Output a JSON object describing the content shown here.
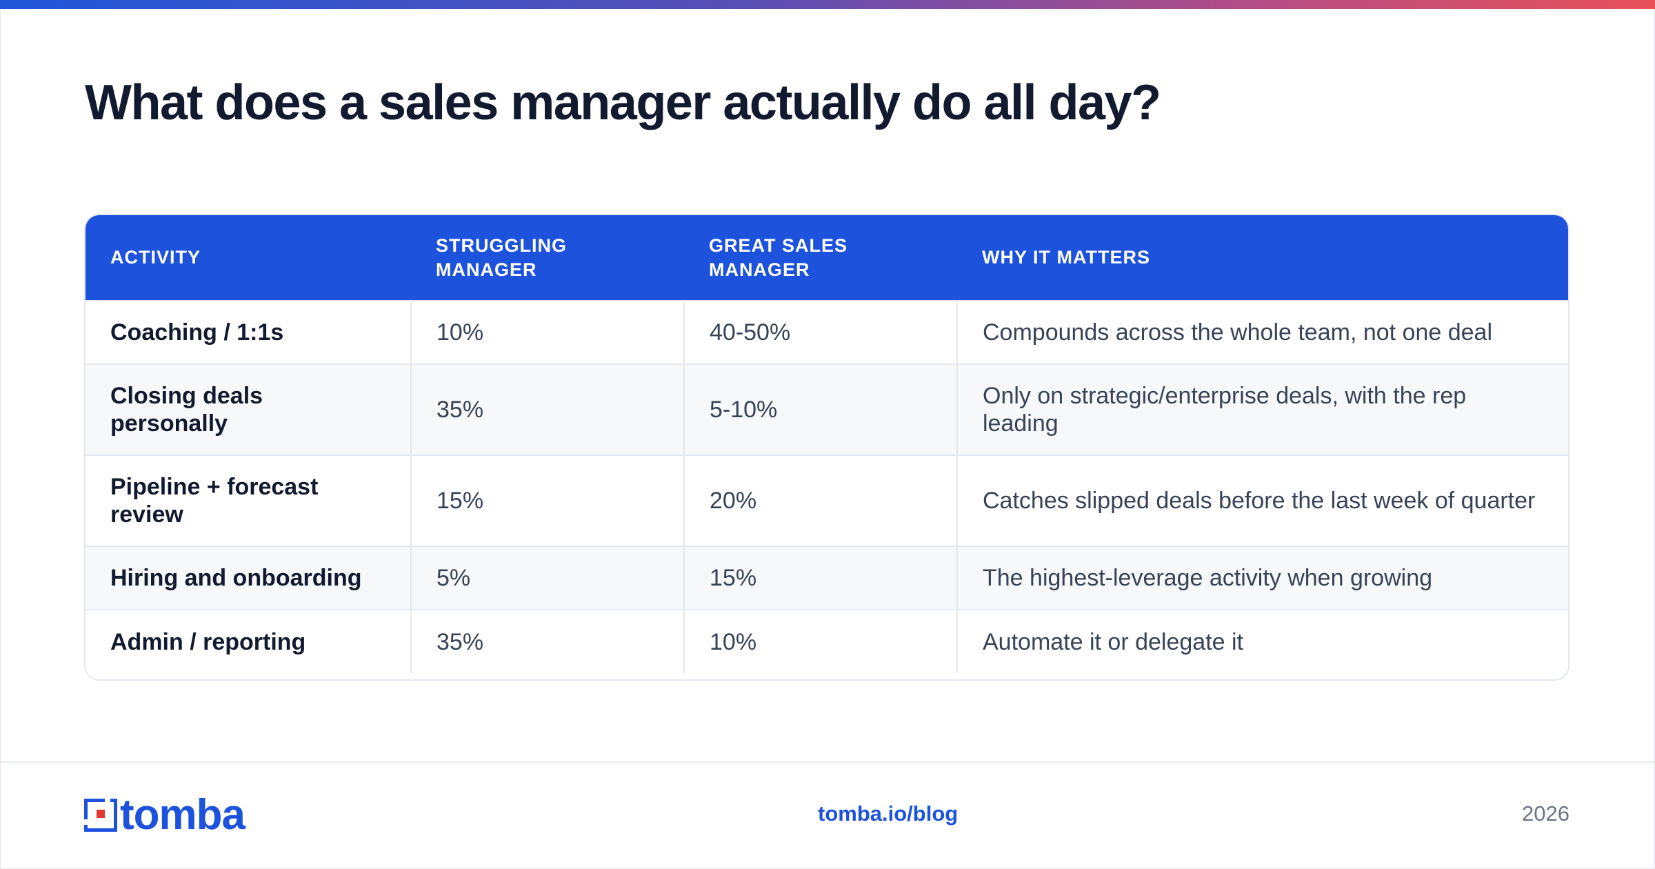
{
  "title": "What does a sales manager actually do all day?",
  "colors": {
    "accent": "#1c52dc",
    "title": "#111a2e",
    "gradient_start": "#1f56d8",
    "gradient_end": "#e8515a"
  },
  "table": {
    "headers": {
      "activity": "ACTIVITY",
      "struggling_line1": "STRUGGLING",
      "struggling_line2": "MANAGER",
      "great_line1": "GREAT SALES",
      "great_line2": "MANAGER",
      "why": "WHY IT MATTERS"
    },
    "rows": [
      {
        "activity": "Coaching / 1:1s",
        "struggling": "10%",
        "great": "40-50%",
        "why": "Compounds across the whole team, not one deal"
      },
      {
        "activity": "Closing deals personally",
        "struggling": "35%",
        "great": "5-10%",
        "why": "Only on strategic/enterprise deals, with the rep leading"
      },
      {
        "activity": "Pipeline + forecast review",
        "struggling": "15%",
        "great": "20%",
        "why": "Catches slipped deals before the last week of quarter"
      },
      {
        "activity": "Hiring and onboarding",
        "struggling": "5%",
        "great": "15%",
        "why": "The highest-leverage activity when growing"
      },
      {
        "activity": "Admin / reporting",
        "struggling": "35%",
        "great": "10%",
        "why": "Automate it or delegate it"
      }
    ]
  },
  "footer": {
    "logo_text": "tomba",
    "logo_icon": "tomba-logo-icon",
    "link": "tomba.io/blog",
    "year": "2026"
  }
}
